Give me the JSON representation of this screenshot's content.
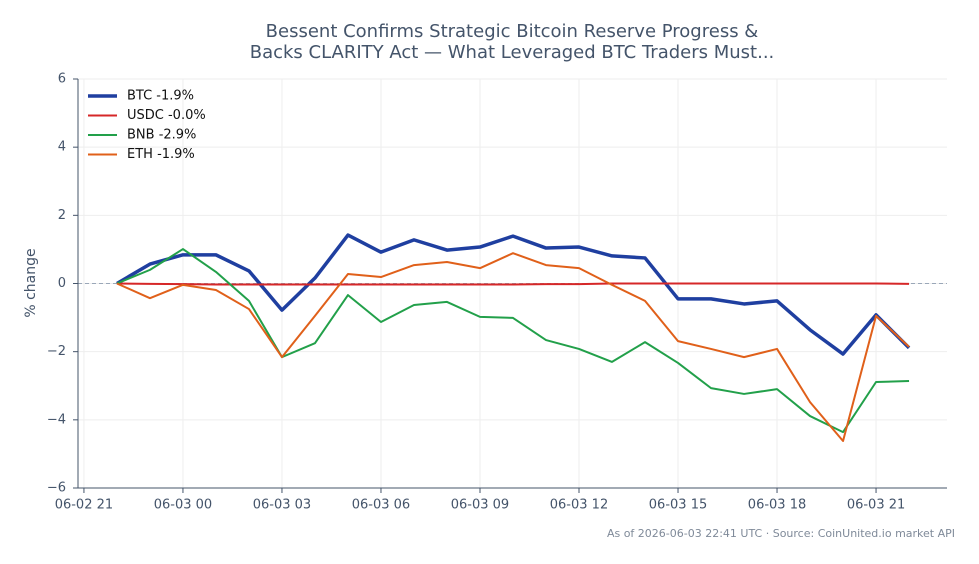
{
  "chart_data": {
    "type": "line",
    "title": [
      "Bessent Confirms Strategic Bitcoin Reserve Progress &",
      "Backs CLARITY Act — What Leveraged BTC Traders Must..."
    ],
    "y_label": "% change",
    "footer": "As of 2026-06-03 22:41 UTC · Source: CoinUnited.io market API",
    "x": [
      "06-02 22",
      "06-02 23",
      "06-03 00",
      "06-03 01",
      "06-03 02",
      "06-03 03",
      "06-03 04",
      "06-03 05",
      "06-03 06",
      "06-03 07",
      "06-03 08",
      "06-03 09",
      "06-03 10",
      "06-03 11",
      "06-03 12",
      "06-03 13",
      "06-03 14",
      "06-03 15",
      "06-03 16",
      "06-03 17",
      "06-03 18",
      "06-03 19",
      "06-03 20",
      "06-03 21",
      "06-03 22"
    ],
    "xticks": [
      "06-02 21",
      "06-03 00",
      "06-03 03",
      "06-03 06",
      "06-03 09",
      "06-03 12",
      "06-03 15",
      "06-03 18",
      "06-03 21"
    ],
    "ylim": [
      -6,
      6
    ],
    "yticks": [
      {
        "value": -6,
        "label": "−6"
      },
      {
        "value": -4,
        "label": "−4"
      },
      {
        "value": -2,
        "label": "−2"
      },
      0,
      2,
      4,
      6
    ],
    "grid": true,
    "legend": "upper left",
    "series": [
      {
        "name": "BTC -1.9%",
        "color": "#1f3fa0",
        "width": 3.5,
        "values": [
          0,
          0.57,
          0.84,
          0.84,
          0.37,
          -0.78,
          0.16,
          1.42,
          0.92,
          1.28,
          0.98,
          1.07,
          1.39,
          1.04,
          1.07,
          0.81,
          0.75,
          -0.45,
          -0.45,
          -0.6,
          -0.51,
          -1.36,
          -2.07,
          -0.92,
          -1.89
        ]
      },
      {
        "name": "USDC -0.0%",
        "color": "#d62728",
        "width": 2,
        "values": [
          0,
          -0.01,
          -0.02,
          -0.03,
          -0.03,
          -0.03,
          -0.03,
          -0.03,
          -0.03,
          -0.03,
          -0.03,
          -0.03,
          -0.03,
          -0.02,
          -0.02,
          0,
          0,
          0,
          0,
          0,
          0,
          0,
          0,
          0,
          -0.01
        ]
      },
      {
        "name": "BNB -2.9%",
        "color": "#22a04a",
        "width": 2,
        "values": [
          0,
          0.4,
          1.01,
          0.34,
          -0.51,
          -2.16,
          -1.75,
          -0.34,
          -1.13,
          -0.63,
          -0.54,
          -0.98,
          -1.01,
          -1.66,
          -1.92,
          -2.3,
          -1.72,
          -2.33,
          -3.07,
          -3.24,
          -3.1,
          -3.89,
          -4.36,
          -2.89,
          -2.86
        ]
      },
      {
        "name": "ETH -1.9%",
        "color": "#e0601a",
        "width": 2,
        "values": [
          0,
          -0.43,
          -0.04,
          -0.19,
          -0.75,
          -2.16,
          -0.95,
          0.28,
          0.19,
          0.54,
          0.63,
          0.45,
          0.89,
          0.54,
          0.45,
          -0.04,
          -0.51,
          -1.69,
          -1.92,
          -2.16,
          -1.92,
          -3.48,
          -4.62,
          -0.95,
          -1.86
        ]
      }
    ]
  }
}
